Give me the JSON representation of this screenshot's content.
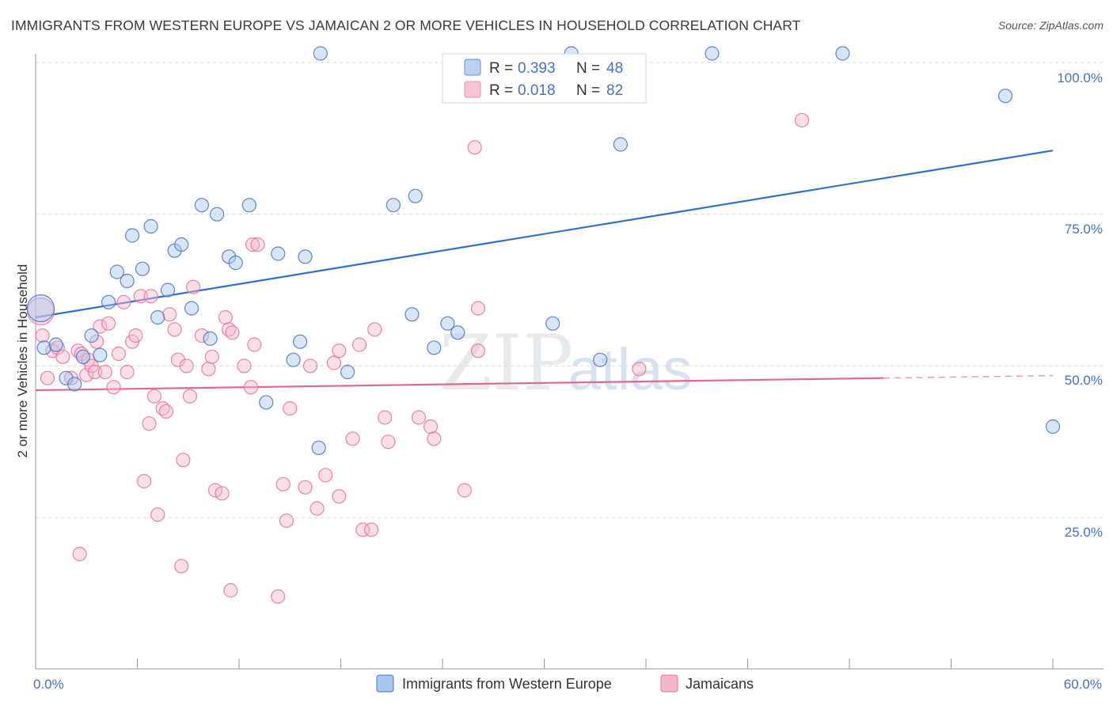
{
  "title": "IMMIGRANTS FROM WESTERN EUROPE VS JAMAICAN 2 OR MORE VEHICLES IN HOUSEHOLD CORRELATION CHART",
  "source": "Source: ZipAtlas.com",
  "watermark": {
    "zip": "ZIP",
    "atlas": "atlas"
  },
  "colors": {
    "blue": "#4472c4",
    "blue_fill": "#a9c6ee",
    "blue_line": "#2f6fd0",
    "pink": "#e8709a",
    "pink_fill": "#f5b6cb",
    "pink_line": "#e06892",
    "grid": "#d9d9d9"
  },
  "legend": {
    "r_label": "R =",
    "n_label": "N =",
    "blue": {
      "r": "0.393",
      "n": "48"
    },
    "pink": {
      "r": "0.018",
      "n": "82"
    }
  },
  "chart_data": {
    "type": "scatter",
    "xlabel": "",
    "ylabel": "2 or more Vehicles in Household",
    "xlim": [
      0,
      60
    ],
    "ylim": [
      0,
      100
    ],
    "x_tick_labels": [
      "0.0%",
      "60.0%"
    ],
    "y_tick_labels": [
      "100.0%",
      "75.0%",
      "50.0%",
      "25.0%"
    ],
    "y_ticks": [
      100,
      75,
      50,
      25
    ],
    "legend_position": "top-center",
    "series": [
      {
        "name": "Immigrants from Western Europe",
        "color": "blue",
        "trend": {
          "x": [
            0,
            60
          ],
          "y": [
            58.0,
            85.5
          ]
        },
        "points": [
          [
            0.3,
            59.5,
            1
          ],
          [
            0.5,
            53.0,
            0
          ],
          [
            1.2,
            53.5,
            0
          ],
          [
            1.8,
            48.0,
            0
          ],
          [
            2.3,
            47.0,
            0
          ],
          [
            2.8,
            51.5,
            0
          ],
          [
            3.3,
            55.0,
            0
          ],
          [
            3.8,
            51.8,
            0
          ],
          [
            4.3,
            60.5,
            0
          ],
          [
            4.8,
            65.5,
            0
          ],
          [
            5.4,
            64.0,
            0
          ],
          [
            5.7,
            71.5,
            0
          ],
          [
            6.3,
            66.0,
            0
          ],
          [
            6.8,
            73.0,
            0
          ],
          [
            7.2,
            58.0,
            0
          ],
          [
            7.8,
            62.5,
            0
          ],
          [
            8.2,
            69.0,
            0
          ],
          [
            8.6,
            70.0,
            0
          ],
          [
            9.2,
            59.5,
            0
          ],
          [
            9.8,
            76.5,
            0
          ],
          [
            10.3,
            54.5,
            0
          ],
          [
            10.7,
            75.0,
            0
          ],
          [
            11.4,
            68.0,
            0
          ],
          [
            11.8,
            67.0,
            0
          ],
          [
            12.6,
            76.5,
            0
          ],
          [
            13.6,
            44.0,
            0
          ],
          [
            14.3,
            68.5,
            0
          ],
          [
            15.2,
            51.0,
            0
          ],
          [
            15.6,
            54.0,
            0
          ],
          [
            15.9,
            68.0,
            0
          ],
          [
            16.7,
            36.5,
            0
          ],
          [
            16.8,
            101.5,
            0
          ],
          [
            18.4,
            49.0,
            0
          ],
          [
            21.1,
            76.5,
            0
          ],
          [
            22.2,
            58.5,
            0
          ],
          [
            22.4,
            78.0,
            0
          ],
          [
            23.5,
            53.0,
            0
          ],
          [
            24.3,
            57.0,
            0
          ],
          [
            24.9,
            55.5,
            0
          ],
          [
            30.5,
            57.0,
            0
          ],
          [
            31.6,
            101.5,
            0
          ],
          [
            33.3,
            51.0,
            0
          ],
          [
            34.5,
            86.5,
            0
          ],
          [
            39.9,
            101.5,
            0
          ],
          [
            47.6,
            101.5,
            0
          ],
          [
            57.2,
            94.5,
            0
          ],
          [
            60.0,
            40.0,
            0
          ]
        ]
      },
      {
        "name": "Jamaicans",
        "color": "pink",
        "trend": {
          "x": [
            0,
            50
          ],
          "y": [
            46.0,
            48.0
          ]
        },
        "trend_dashed": {
          "x": [
            50,
            60
          ],
          "y": [
            48.0,
            48.4
          ]
        },
        "points": [
          [
            0.3,
            59.0,
            1
          ],
          [
            0.4,
            55.0,
            0
          ],
          [
            0.7,
            48.0,
            0
          ],
          [
            1.0,
            52.5,
            0
          ],
          [
            1.3,
            53.0,
            0
          ],
          [
            1.6,
            51.5,
            0
          ],
          [
            2.1,
            48.0,
            0
          ],
          [
            2.5,
            52.5,
            0
          ],
          [
            2.7,
            52.0,
            0
          ],
          [
            2.6,
            19.0,
            0
          ],
          [
            3.0,
            48.5,
            0
          ],
          [
            3.1,
            51.0,
            0
          ],
          [
            3.3,
            50.0,
            0
          ],
          [
            3.5,
            49.0,
            0
          ],
          [
            3.6,
            54.0,
            0
          ],
          [
            3.8,
            56.5,
            0
          ],
          [
            4.1,
            49.0,
            0
          ],
          [
            4.3,
            57.0,
            0
          ],
          [
            4.6,
            46.5,
            0
          ],
          [
            4.9,
            52.0,
            0
          ],
          [
            5.2,
            60.5,
            0
          ],
          [
            5.4,
            49.0,
            0
          ],
          [
            5.7,
            54.0,
            0
          ],
          [
            5.9,
            55.0,
            0
          ],
          [
            6.2,
            61.5,
            0
          ],
          [
            6.4,
            31.0,
            0
          ],
          [
            6.7,
            40.5,
            0
          ],
          [
            6.8,
            61.5,
            0
          ],
          [
            7.0,
            45.0,
            0
          ],
          [
            7.2,
            25.5,
            0
          ],
          [
            7.5,
            43.0,
            0
          ],
          [
            7.7,
            42.5,
            0
          ],
          [
            7.9,
            58.5,
            0
          ],
          [
            8.2,
            56.0,
            0
          ],
          [
            8.4,
            51.0,
            0
          ],
          [
            8.6,
            17.0,
            0
          ],
          [
            8.7,
            34.5,
            0
          ],
          [
            8.9,
            50.0,
            0
          ],
          [
            9.1,
            45.0,
            0
          ],
          [
            9.3,
            63.0,
            0
          ],
          [
            9.8,
            55.0,
            0
          ],
          [
            10.2,
            49.5,
            0
          ],
          [
            10.4,
            51.5,
            0
          ],
          [
            10.6,
            29.5,
            0
          ],
          [
            11.0,
            29.0,
            0
          ],
          [
            11.2,
            58.0,
            0
          ],
          [
            11.4,
            56.0,
            0
          ],
          [
            11.6,
            55.5,
            0
          ],
          [
            11.5,
            13.0,
            0
          ],
          [
            12.3,
            50.0,
            0
          ],
          [
            12.8,
            70.0,
            0
          ],
          [
            12.7,
            46.5,
            0
          ],
          [
            12.9,
            53.5,
            0
          ],
          [
            13.1,
            70.0,
            0
          ],
          [
            14.3,
            12.0,
            0
          ],
          [
            14.6,
            30.5,
            0
          ],
          [
            14.8,
            24.5,
            0
          ],
          [
            15.0,
            43.0,
            0
          ],
          [
            15.9,
            30.0,
            0
          ],
          [
            16.2,
            50.0,
            0
          ],
          [
            16.6,
            26.5,
            0
          ],
          [
            17.1,
            32.0,
            0
          ],
          [
            17.6,
            50.5,
            0
          ],
          [
            17.9,
            52.5,
            0
          ],
          [
            17.9,
            28.5,
            0
          ],
          [
            18.7,
            38.0,
            0
          ],
          [
            19.1,
            53.5,
            0
          ],
          [
            19.3,
            23.0,
            0
          ],
          [
            19.8,
            23.0,
            0
          ],
          [
            20.0,
            56.0,
            0
          ],
          [
            20.6,
            41.5,
            0
          ],
          [
            20.8,
            37.5,
            0
          ],
          [
            22.6,
            41.5,
            0
          ],
          [
            23.3,
            40.0,
            0
          ],
          [
            23.5,
            38.0,
            0
          ],
          [
            25.3,
            29.5,
            0
          ],
          [
            25.9,
            86.0,
            0
          ],
          [
            26.1,
            52.5,
            0
          ],
          [
            26.1,
            59.5,
            0
          ],
          [
            35.6,
            49.5,
            0
          ],
          [
            45.2,
            90.5,
            0
          ]
        ]
      }
    ]
  },
  "bottom_legend": [
    "Immigrants from Western Europe",
    "Jamaicans"
  ]
}
